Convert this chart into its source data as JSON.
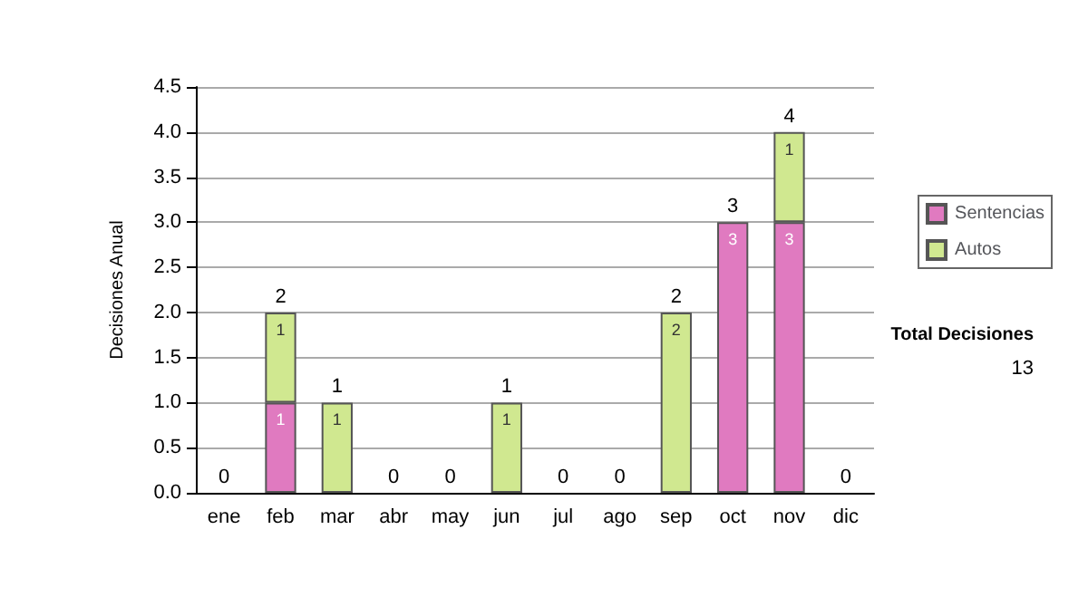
{
  "chart_data": {
    "type": "bar",
    "ylabel": "Decisiones Anual",
    "categories": [
      "ene",
      "feb",
      "mar",
      "abr",
      "may",
      "jun",
      "jul",
      "ago",
      "sep",
      "oct",
      "nov",
      "dic"
    ],
    "stacked": true,
    "series": [
      {
        "name": "Sentencias",
        "color": "#e07ac0",
        "values": [
          0,
          1,
          0,
          0,
          0,
          0,
          0,
          0,
          0,
          3,
          3,
          0
        ],
        "value_labels": [
          null,
          "1",
          null,
          null,
          null,
          null,
          null,
          null,
          null,
          "3",
          "3",
          null
        ]
      },
      {
        "name": "Autos",
        "color": "#d0e890",
        "values": [
          0,
          1,
          1,
          0,
          0,
          1,
          0,
          0,
          2,
          0,
          1,
          0
        ],
        "value_labels": [
          null,
          "1",
          "1",
          null,
          null,
          "1",
          null,
          null,
          "2",
          null,
          "1",
          null
        ]
      }
    ],
    "totals": [
      "0",
      "2",
      "1",
      "0",
      "0",
      "1",
      "0",
      "0",
      "2",
      "3",
      "4",
      "0"
    ],
    "ylim": [
      0,
      4.5
    ],
    "yticks": [
      {
        "value": 0,
        "label": "0.0"
      },
      {
        "value": 0.5,
        "label": "0.5"
      },
      {
        "value": 1,
        "label": "1.0"
      },
      {
        "value": 1.5,
        "label": "1.5"
      },
      {
        "value": 2,
        "label": "2.0"
      },
      {
        "value": 2.5,
        "label": "2.5"
      },
      {
        "value": 3,
        "label": "3.0"
      },
      {
        "value": 3.5,
        "label": "3.5"
      },
      {
        "value": 4,
        "label": "4.0"
      },
      {
        "value": 4.5,
        "label": "4.5"
      }
    ],
    "grid": "y",
    "legend": "right",
    "annotations": [
      "Total Decisiones",
      "13"
    ]
  }
}
